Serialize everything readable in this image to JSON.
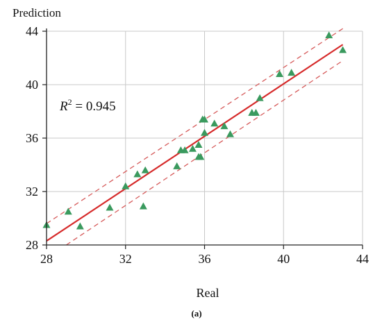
{
  "chart_data": {
    "type": "scatter",
    "ylabel": "Prediction",
    "xlabel": "Real",
    "caption": "(a)",
    "xlim": [
      28,
      44
    ],
    "ylim": [
      28,
      44
    ],
    "xticks": [
      "28",
      "32",
      "36",
      "40",
      "44"
    ],
    "yticks": [
      "28",
      "32",
      "36",
      "40",
      "44"
    ],
    "grid": true,
    "annotation": {
      "r_symbol": "R",
      "superscript": "2",
      "value_text": " = 0.945"
    },
    "points": [
      {
        "x": 28.0,
        "y": 29.5
      },
      {
        "x": 29.1,
        "y": 30.5
      },
      {
        "x": 29.7,
        "y": 29.4
      },
      {
        "x": 31.2,
        "y": 30.8
      },
      {
        "x": 32.0,
        "y": 32.4
      },
      {
        "x": 32.6,
        "y": 33.3
      },
      {
        "x": 32.9,
        "y": 30.9
      },
      {
        "x": 33.0,
        "y": 33.6
      },
      {
        "x": 34.6,
        "y": 33.9
      },
      {
        "x": 34.8,
        "y": 35.1
      },
      {
        "x": 35.0,
        "y": 35.1
      },
      {
        "x": 35.4,
        "y": 35.2
      },
      {
        "x": 35.7,
        "y": 35.5
      },
      {
        "x": 35.7,
        "y": 34.6
      },
      {
        "x": 35.8,
        "y": 34.6
      },
      {
        "x": 35.9,
        "y": 37.4
      },
      {
        "x": 36.0,
        "y": 37.4
      },
      {
        "x": 36.0,
        "y": 36.4
      },
      {
        "x": 36.5,
        "y": 37.1
      },
      {
        "x": 37.0,
        "y": 36.9
      },
      {
        "x": 37.3,
        "y": 36.3
      },
      {
        "x": 38.4,
        "y": 37.9
      },
      {
        "x": 38.6,
        "y": 37.9
      },
      {
        "x": 38.8,
        "y": 39.0
      },
      {
        "x": 39.8,
        "y": 40.8
      },
      {
        "x": 40.4,
        "y": 40.9
      },
      {
        "x": 42.3,
        "y": 43.7
      },
      {
        "x": 43.0,
        "y": 42.6
      }
    ],
    "fit_line": {
      "x": [
        28,
        43
      ],
      "y": [
        28.3,
        43.0
      ]
    },
    "upper_band": {
      "x": [
        28,
        43
      ],
      "y": [
        29.6,
        44.2
      ]
    },
    "lower_band": {
      "x": [
        29,
        43
      ],
      "y": [
        28.0,
        41.8
      ]
    },
    "colors": {
      "marker": "#3a9a5e",
      "fit_line": "#d62a2a",
      "band": "#d65a5a",
      "grid": "#c8c8c8",
      "axis": "#222222"
    }
  }
}
